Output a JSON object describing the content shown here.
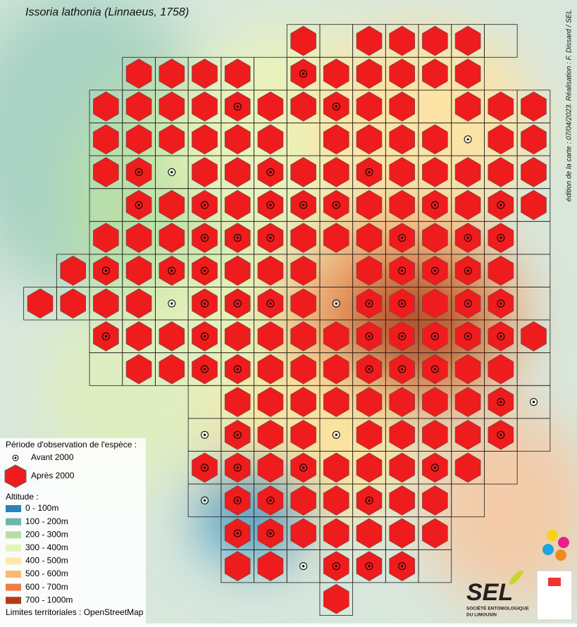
{
  "title": "Issoria lathonia (Linnaeus, 1758)",
  "credit": "édition de la carte : 07/04/2023. Réalisation : F. Dissard / SEL",
  "legend": {
    "period_title": "Période d'observation de l'espèce :",
    "before": "Avant 2000",
    "after": "Après 2000",
    "altitude_title": "Altitude :",
    "altitudes": [
      {
        "label": "0 - 100m",
        "color": "#2b83ba"
      },
      {
        "label": "100 - 200m",
        "color": "#6cb7a8"
      },
      {
        "label": "200 - 300m",
        "color": "#b5dea0"
      },
      {
        "label": "300 - 400m",
        "color": "#e6f3b6"
      },
      {
        "label": "400 - 500m",
        "color": "#fde9a6"
      },
      {
        "label": "500 - 600m",
        "color": "#fdb870"
      },
      {
        "label": "600 - 700m",
        "color": "#f07b47"
      },
      {
        "label": "700 - 1000m",
        "color": "#b23c10"
      }
    ],
    "limits": "Limites territoriales : OpenStreetMap"
  },
  "logo": {
    "name": "SEL",
    "subtitle_1": "SOCIÉTÉ ENTOMOLOGIQUE",
    "subtitle_2": "DU LIMOUSIN"
  }
}
